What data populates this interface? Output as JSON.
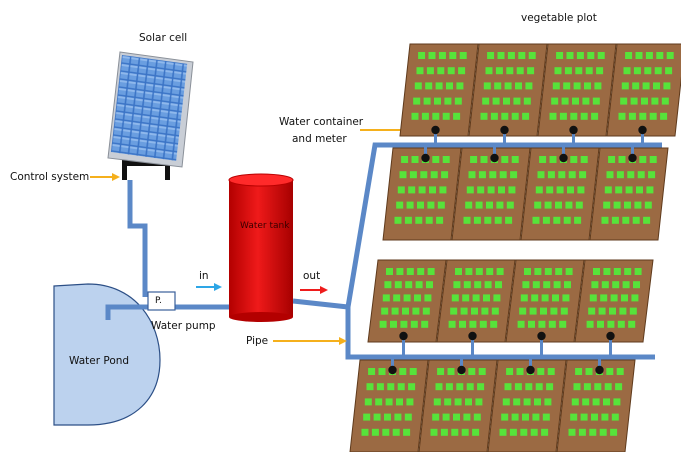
{
  "labels": {
    "solar_cell": "Solar cell",
    "control_system": "Control system",
    "water_tank": "Water tank",
    "water_pond": "Water Pond",
    "water_pump": "Water pump",
    "pump_box": "P.",
    "in": "in",
    "out": "out",
    "pipe": "Pipe",
    "water_container_line1": "Water container",
    "water_container_line2": "and meter",
    "vegetable_plot": "vegetable plot"
  },
  "colors": {
    "pipe": "#5b88c7",
    "tank": "#dd0000",
    "pond": "#bcd2ee",
    "soil": "#9b6a43",
    "plant": "#57e33a",
    "pointer_arrow": "#f5b01c",
    "in_arrow": "#2ea6e6",
    "out_arrow": "#ee1c1c",
    "solar_panel": "#2f5fa8"
  },
  "icons": [
    "solar-panel-icon",
    "water-tank-icon",
    "water-pump-icon",
    "water-meter-icon",
    "arrow-icon"
  ]
}
